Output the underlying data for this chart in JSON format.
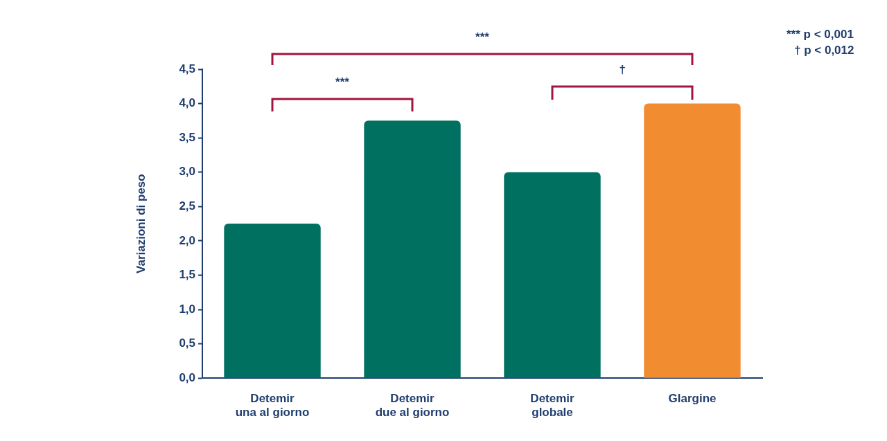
{
  "chart_data": {
    "type": "bar",
    "ylabel": "Variazioni di peso",
    "categories": [
      "Detemir una al giorno",
      "Detemir due al giorno",
      "Detemir globale",
      "Glargine"
    ],
    "values": [
      2.25,
      3.75,
      3.0,
      4.0
    ],
    "colors": [
      "#007060",
      "#007060",
      "#007060",
      "#f28c30"
    ],
    "ylim": [
      0,
      4.5
    ],
    "yticks": [
      {
        "value": 0,
        "label": "0,0"
      },
      {
        "value": 0.5,
        "label": "0,5"
      },
      {
        "value": 1,
        "label": "1,0"
      },
      {
        "value": 1.5,
        "label": "1,5"
      },
      {
        "value": 2,
        "label": "2,0"
      },
      {
        "value": 2.5,
        "label": "2,5"
      },
      {
        "value": 3,
        "label": "3,0"
      },
      {
        "value": 3.5,
        "label": "3,5"
      },
      {
        "value": 4,
        "label": "4,0"
      },
      {
        "value": 4.5,
        "label": "4,5"
      }
    ],
    "grid": false,
    "legend": false,
    "annotations": [
      "***",
      "***",
      "†",
      "*** p < 0,001",
      "† p < 0,012"
    ]
  }
}
